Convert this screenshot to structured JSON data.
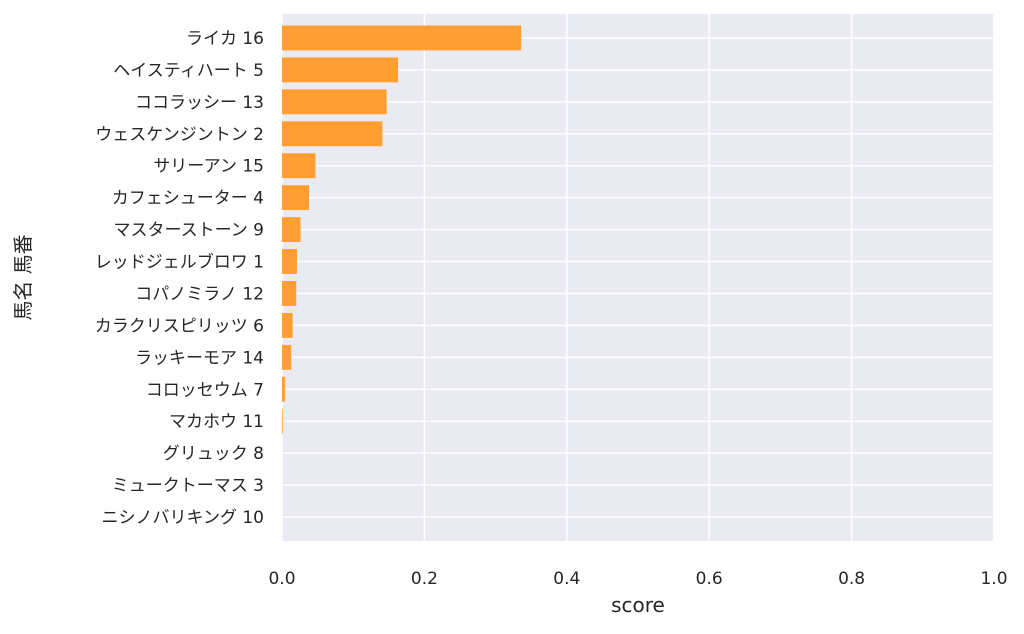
{
  "chart_data": {
    "type": "bar",
    "orientation": "horizontal",
    "xlabel": "score",
    "ylabel": "馬名 馬番",
    "xlim": [
      0,
      1
    ],
    "xticks": [
      "0.0",
      "0.2",
      "0.4",
      "0.6",
      "0.8",
      "1.0"
    ],
    "grid": true,
    "bar_color": "#ff9f33",
    "background_color": "#eaeaf2",
    "categories": [
      "ライカ 16",
      "ヘイスティハート 5",
      "ココラッシー 13",
      "ウェスケンジントン 2",
      "サリーアン 15",
      "カフェシューター 4",
      "マスターストーン 9",
      "レッドジェルブロワ 1",
      "コパノミラノ 12",
      "カラクリスピリッツ 6",
      "ラッキーモア 14",
      "コロッセウム 7",
      "マカホウ 11",
      "グリュック 8",
      "ミュークトーマス 3",
      "ニシノバリキング 10"
    ],
    "values": [
      0.336,
      0.163,
      0.147,
      0.141,
      0.047,
      0.038,
      0.026,
      0.021,
      0.02,
      0.015,
      0.013,
      0.004,
      0.001,
      0.0,
      0.0,
      0.0
    ]
  }
}
